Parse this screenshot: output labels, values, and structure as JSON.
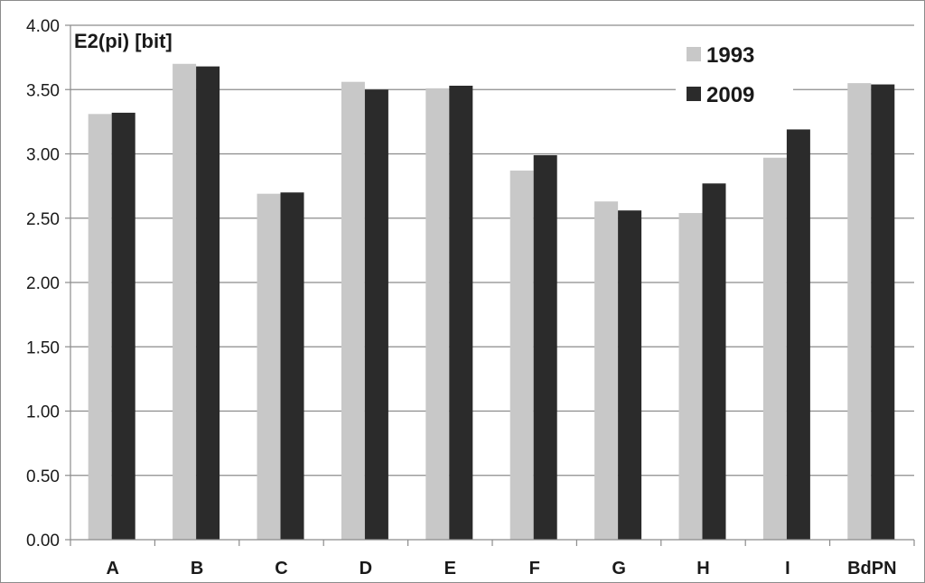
{
  "chart_data": {
    "type": "bar",
    "title": "E2(pi) [bit]",
    "xlabel": "",
    "ylabel": "",
    "ylim": [
      0,
      4
    ],
    "yticks": [
      "0.00",
      "0.50",
      "1.00",
      "1.50",
      "2.00",
      "2.50",
      "3.00",
      "3.50",
      "4.00"
    ],
    "categories": [
      "A",
      "B",
      "C",
      "D",
      "E",
      "F",
      "G",
      "H",
      "I",
      "BdPN"
    ],
    "series": [
      {
        "name": "1993",
        "color": "#c8c8c8",
        "values": [
          3.31,
          3.7,
          2.69,
          3.56,
          3.51,
          2.87,
          2.63,
          2.54,
          2.97,
          3.55
        ]
      },
      {
        "name": "2009",
        "color": "#2b2b2b",
        "values": [
          3.32,
          3.68,
          2.7,
          3.5,
          3.53,
          2.99,
          2.56,
          2.77,
          3.19,
          3.54
        ]
      }
    ],
    "grid": true,
    "legend_position": "top-right"
  }
}
